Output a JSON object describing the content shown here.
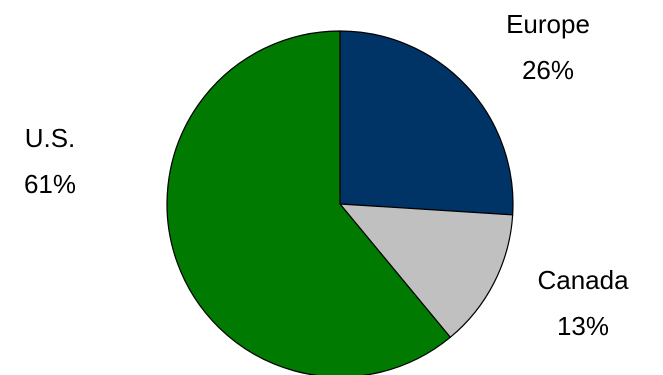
{
  "chart_data": {
    "type": "pie",
    "slices": [
      {
        "label": "Europe",
        "value": 26,
        "value_label": "26%",
        "color": "#003366"
      },
      {
        "label": "Canada",
        "value": 13,
        "value_label": "13%",
        "color": "#c0c0c0"
      },
      {
        "label": "U.S.",
        "value": 61,
        "value_label": "61%",
        "color": "#007a00"
      }
    ],
    "start_angle": "12 o'clock",
    "direction": "clockwise",
    "legend": "none",
    "border_color": "#000000"
  }
}
